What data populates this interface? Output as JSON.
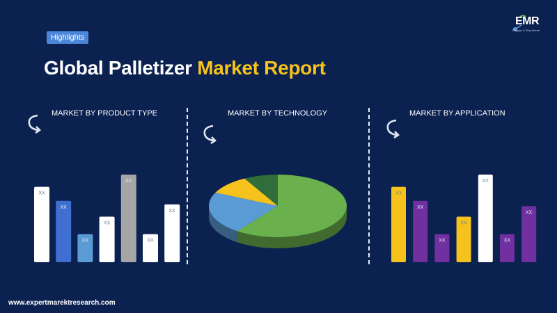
{
  "header": {
    "badge": "Highlights",
    "title_prefix": "Global Palletizer ",
    "title_accent": "Market Report"
  },
  "logo": {
    "text": "EMR",
    "tagline": "Engage & Stay Ahead"
  },
  "footer": {
    "url": "www.expertmarektresearch.com"
  },
  "icons": {
    "section_arrow": "curved-arrow-icon"
  },
  "colors": {
    "background": "#0b2150",
    "accent": "#f6c21c",
    "badge": "#4b86d8"
  },
  "chart_data": [
    {
      "type": "bar",
      "title": "MARKET BY PRODUCT TYPE",
      "data_labels": [
        "XX",
        "XX",
        "XX",
        "XX",
        "XX",
        "XX",
        "XX"
      ],
      "values": [
        8.6,
        7.0,
        3.2,
        5.2,
        10.0,
        3.2,
        6.6
      ],
      "colors": [
        "#ffffff",
        "#3e6fd1",
        "#5b9bd5",
        "#ffffff",
        "#a5a5a5",
        "#ffffff",
        "#ffffff"
      ]
    },
    {
      "type": "pie",
      "title": "MARKET BY TECHNOLOGY",
      "slices": [
        {
          "value": 60,
          "color": "#6ab04c"
        },
        {
          "value": 22,
          "color": "#5b9bd5"
        },
        {
          "value": 10,
          "color": "#f6c21c"
        },
        {
          "value": 8,
          "color": "#2f6e3b"
        }
      ]
    },
    {
      "type": "bar",
      "title": "MARKET BY APPLICATION",
      "data_labels": [
        "XX",
        "XX",
        "XX",
        "XX",
        "XX",
        "XX",
        "XX"
      ],
      "values": [
        8.6,
        7.0,
        3.2,
        5.2,
        10.0,
        3.2,
        6.4
      ],
      "colors": [
        "#f6c21c",
        "#7030a0",
        "#7030a0",
        "#f6c21c",
        "#ffffff",
        "#7030a0",
        "#7030a0"
      ]
    }
  ]
}
